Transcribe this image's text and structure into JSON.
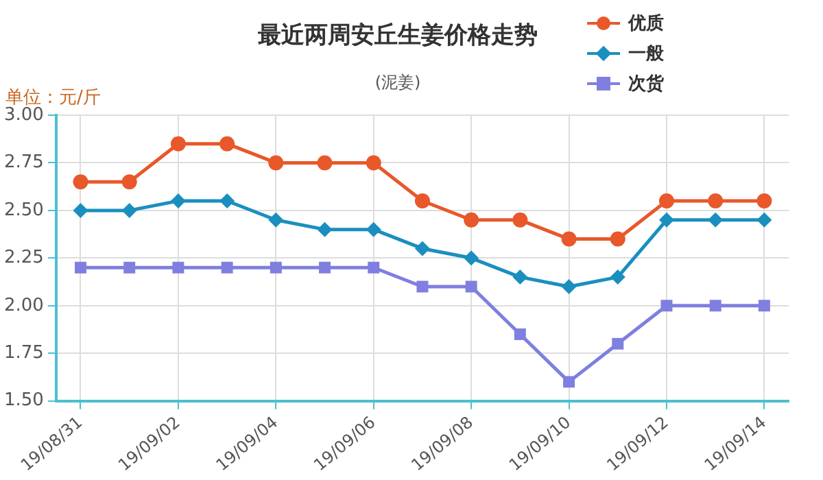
{
  "chart_data": {
    "type": "line",
    "title": "最近两周安丘生姜价格走势",
    "subtitle": "(泥姜)",
    "ylabel": "单位：元/斤",
    "categories": [
      "19/08/31",
      null,
      "19/09/02",
      null,
      "19/09/04",
      null,
      "19/09/06",
      null,
      "19/09/08",
      null,
      "19/09/10",
      null,
      "19/09/12",
      null,
      "19/09/14"
    ],
    "series": [
      {
        "name": "优质",
        "color": "#e8582a",
        "marker": "circle",
        "values": [
          2.65,
          2.65,
          2.85,
          2.85,
          2.75,
          2.75,
          2.75,
          2.55,
          2.45,
          2.45,
          2.35,
          2.35,
          2.55,
          2.55,
          2.55
        ]
      },
      {
        "name": "一般",
        "color": "#1a8fbf",
        "marker": "diamond",
        "values": [
          2.5,
          2.5,
          2.55,
          2.55,
          2.45,
          2.4,
          2.4,
          2.3,
          2.25,
          2.15,
          2.1,
          2.15,
          2.45,
          2.45,
          2.45
        ]
      },
      {
        "name": "次货",
        "color": "#7f7fe0",
        "marker": "square",
        "values": [
          2.2,
          2.2,
          2.2,
          2.2,
          2.2,
          2.2,
          2.2,
          2.1,
          2.1,
          1.85,
          1.6,
          1.8,
          2.0,
          2.0,
          2.0
        ]
      }
    ],
    "ylim": [
      1.5,
      3.0
    ],
    "yticks": [
      {
        "value": 1.5,
        "label": "1.50"
      },
      {
        "value": 1.75,
        "label": "1.75"
      },
      {
        "value": 2.0,
        "label": "2.00"
      },
      {
        "value": 2.25,
        "label": "2.25"
      },
      {
        "value": 2.5,
        "label": "2.50"
      },
      {
        "value": 2.75,
        "label": "2.75"
      },
      {
        "value": 3.0,
        "label": "3.00"
      }
    ],
    "grid": true,
    "legend": "top right"
  }
}
